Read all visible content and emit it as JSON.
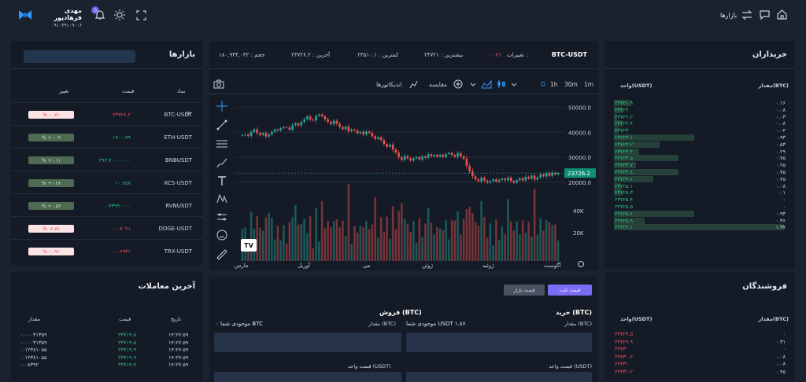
{
  "header": {
    "user_name": "مهدی فرهادپور",
    "user_phone": "۰۹۱۰۴۹۱۰۹۰۰۶",
    "badge": "0",
    "nav_label": "بازارها"
  },
  "markets": {
    "title": "بازارها",
    "cols": [
      "نماد",
      "قیمت",
      "تغییر"
    ],
    "rows": [
      {
        "symbol": "BTC-USDT",
        "price": "۲۳۷۲۶.۲",
        "change": "% -۰.۷۱",
        "dir": "neg"
      },
      {
        "symbol": "ETH-USDT",
        "price": "۱۷۰۰.۹۹",
        "change": "% +۰.۰۳",
        "dir": "pos"
      },
      {
        "symbol": "BNBUSDT",
        "price": "۲۹۲.۷۰۰۰۰۰۰۰",
        "change": "% +۰.۱۱",
        "dir": "pos"
      },
      {
        "symbol": "KCS-USDT",
        "price": "۱۰.۴۵۷",
        "change": "% +۰.۲۸",
        "dir": "pos"
      },
      {
        "symbol": "RVNUSDT",
        "price": "۰.۰۴۳۹۹۰۰۰۰",
        "change": "% +۰.۵۶",
        "dir": "pos"
      },
      {
        "symbol": "DOGE-USDT",
        "price": "۰.۰۷۰۲۱",
        "change": "% -۲.۷۸",
        "dir": "neg"
      },
      {
        "symbol": "TRX-USDT",
        "price": "۰.۰۶۹۳۱",
        "change": "% -۰.۹۱",
        "dir": "neg"
      }
    ]
  },
  "last_trades": {
    "title": "آخرین معاملات",
    "cols": [
      "تاریخ",
      "قیمت",
      "مقدار"
    ],
    "rows": [
      {
        "time": "۱۴:۲۷:۵۹",
        "price": "۲۳۷۱۹.۵",
        "amount": "۰.۰۰۰۳۱۳۵۹",
        "dir": "g"
      },
      {
        "time": "۱۴:۲۷:۵۹",
        "price": "۲۳۷۱۹.۵",
        "amount": "۰.۰۰۰۳۱۳۵۹",
        "dir": "g"
      },
      {
        "time": "۱۴:۲۷:۵۹",
        "price": "۲۳۷۱۹.۹",
        "amount": "۰.۱۲۳۸۱۰۵۵",
        "dir": "g"
      },
      {
        "time": "۱۴:۲۷:۵۹",
        "price": "۲۳۷۱۹.۹",
        "amount": "۰.۱۲۳۸۱۰۵۵",
        "dir": "g"
      },
      {
        "time": "۱۴:۲۷:۵۹",
        "price": "۲۳۷۱۹.۷",
        "amount": "۰.۰۸۳۹۲",
        "dir": "g"
      }
    ]
  },
  "ticker": {
    "pair": "BTC-USDT",
    "change_label": "تغییرات :",
    "change_value": "-۰.۷۱",
    "high": "بیشترین : ۲۴۷۲۱",
    "low": "کمترین : ۲۳۵۱۰.۱",
    "last": "آخرین : ۲۳۷۲۶.۲",
    "volume": "حجم : ۱۸۰,۹۴۴,۰۳۲"
  },
  "chart_toolbar": {
    "timeframes": [
      "1m",
      "30m",
      "1h",
      "D"
    ],
    "compare": "مقایسه",
    "indicators": "اندیکاتورها"
  },
  "chart_data": {
    "type": "candlestick",
    "y_ticks": [
      "50000.0",
      "40000.0",
      "30000.0",
      "20000.0"
    ],
    "ylim": [
      15000,
      52000
    ],
    "volume_ticks": [
      "40K",
      "20K"
    ],
    "x_ticks": [
      "مارس",
      "آوریل",
      "می",
      "ژوئن",
      "ژوئیه",
      "آگوست"
    ],
    "last_price": "23726.2",
    "close": [
      38800,
      39100,
      38500,
      40100,
      41200,
      39700,
      38900,
      39600,
      38300,
      39100,
      40200,
      41100,
      40700,
      41600,
      42100,
      41900,
      41000,
      42800,
      43600,
      42700,
      44100,
      45200,
      46300,
      45100,
      44700,
      46500,
      47100,
      46400,
      45200,
      44100,
      43200,
      44600,
      43400,
      42100,
      41200,
      42300,
      40400,
      41100,
      40700,
      39600,
      40200,
      39100,
      40300,
      39700,
      38400,
      37300,
      38000,
      36900,
      35300,
      34200,
      35100,
      33100,
      31900,
      30100,
      29000,
      30500,
      29600,
      28700,
      29600,
      30100,
      29100,
      30400,
      29800,
      31200,
      30400,
      31000,
      30300,
      31000,
      30200,
      31300,
      31800,
      30900,
      30200,
      31700,
      30400,
      29400,
      26600,
      24500,
      22400,
      21200,
      20400,
      21900,
      20700,
      19900,
      20500,
      21200,
      20300,
      21000,
      21500,
      20800,
      21900,
      20600,
      19900,
      20900,
      21700,
      20800,
      22200,
      21500,
      22700,
      21100,
      22000,
      23200,
      22400,
      23700,
      22600,
      23900,
      23200,
      23726
    ]
  },
  "buyers": {
    "title": "خریداران",
    "cols": [
      "مقدار(BTC)",
      "واحد(USDT)"
    ],
    "rows": [
      [
        "۰.۱۶",
        "۲۳۷۲۱.۹"
      ],
      [
        "۰.۰۸",
        "۲۳۷۲۲"
      ],
      [
        "۰.۰۳",
        "۲۳۷۲۲.۲"
      ],
      [
        "۰.۰۸",
        "۲۳۷۲۲.۴"
      ],
      [
        "۰.۰۴",
        "۲۳۷۲۳"
      ],
      [
        "۰.۹۳",
        "۲۳۷۲۳.۱"
      ],
      [
        "۰.۵۳",
        "۲۳۷۲۳.۲"
      ],
      [
        "۰.۲۹",
        "۲۳۷۲۳.۴"
      ],
      [
        "۰.۷۵",
        "۲۳۷۲۳.۵"
      ],
      [
        "۰.۲۵",
        "۲۳۷۲۳.۷"
      ],
      [
        "۰.۷۵",
        "۲۳۷۲۳.۸"
      ],
      [
        "۰.۴۵",
        "۲۳۷۲۴.۶"
      ],
      [
        "۰.۰۸",
        "۲۳۷۲۵.۱"
      ],
      [
        "۰.۱",
        "۲۳۷۲۵.۳"
      ],
      [
        "۰",
        "۲۳۷۲۵.۴"
      ],
      [
        "۰",
        "۲۳۷۲۵.۵"
      ],
      [
        "۰.۹۳",
        "۲۳۷۲۵.۶"
      ],
      [
        "۰.۳۶",
        "۲۳۷۲۵.۹"
      ],
      [
        "۱.۹۷",
        "۲۳۷۲۶.۱"
      ]
    ],
    "depth": [
      0.1,
      0.05,
      0.02,
      0.05,
      0.03,
      0.47,
      0.27,
      0.15,
      0.38,
      0.13,
      0.38,
      0.23,
      0.04,
      0.05,
      0,
      0,
      0.47,
      0.18,
      1
    ]
  },
  "sellers": {
    "title": "فروشندگان",
    "cols": [
      "مقدار(BTC)",
      "واحد(USDT)"
    ],
    "rows": [
      [
        "۰",
        "۲۳۷۲۹.۵"
      ],
      [
        "۰.۳۱",
        "۲۳۷۲۹.۹"
      ],
      [
        "۰",
        "۲۳۷۳۰"
      ],
      [
        "۰.۰۸",
        "۲۳۷۳۰.۲"
      ],
      [
        "۰.۰۸",
        "۲۳۷۳۱"
      ],
      [
        "۰.۴۵",
        "۲۳۷۳۱.۲"
      ]
    ]
  },
  "order": {
    "tab_market": "قیمت بازار",
    "tab_limit": "قیمت ثابت",
    "buy_title": "خرید (BTC)",
    "buy_amount_label": "مقدار (BTC)",
    "buy_balance": "موجودی شما USDT ۱.۸۶",
    "buy_price_label": "قیمت واحد (USDT)",
    "sell_title": "فروش (BTC)",
    "sell_amount_label": "مقدار (BTC)",
    "sell_balance": "موجودی شما ۰ BTC",
    "sell_price_label": "قیمت واحد (USDT)"
  },
  "colors": {
    "up": "#26a69a",
    "down": "#ef5350",
    "green_text": "#26c281",
    "red_text": "#ef4e63",
    "accent": "#7b6cf6"
  }
}
